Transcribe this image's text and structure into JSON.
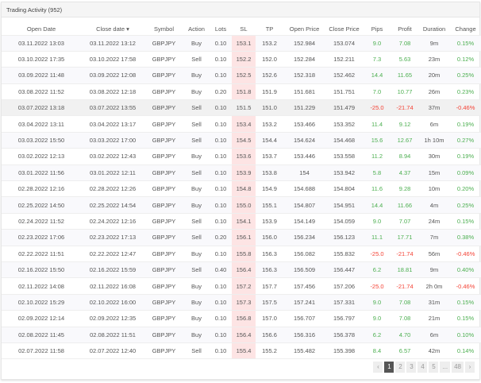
{
  "panel": {
    "title": "Trading Activity (952)"
  },
  "columns": [
    "Open Date",
    "Close date ▾",
    "Symbol",
    "Action",
    "Lots",
    "SL",
    "TP",
    "Open Price",
    "Close Price",
    "Pips",
    "Profit",
    "Duration",
    "Change"
  ],
  "rows": [
    [
      "03.11.2022 13:03",
      "03.11.2022 13:12",
      "GBPJPY",
      "Buy",
      "0.10",
      "153.1",
      "153.2",
      "152.984",
      "153.074",
      "9.0",
      "7.08",
      "9m",
      "0.15%"
    ],
    [
      "03.10.2022 17:35",
      "03.10.2022 17:58",
      "GBPJPY",
      "Sell",
      "0.10",
      "152.2",
      "152.0",
      "152.284",
      "152.211",
      "7.3",
      "5.63",
      "23m",
      "0.12%"
    ],
    [
      "03.09.2022 11:48",
      "03.09.2022 12:08",
      "GBPJPY",
      "Buy",
      "0.10",
      "152.5",
      "152.6",
      "152.318",
      "152.462",
      "14.4",
      "11.65",
      "20m",
      "0.25%"
    ],
    [
      "03.08.2022 11:52",
      "03.08.2022 12:18",
      "GBPJPY",
      "Buy",
      "0.20",
      "151.8",
      "151.9",
      "151.681",
      "151.751",
      "7.0",
      "10.77",
      "26m",
      "0.23%"
    ],
    [
      "03.07.2022 13:18",
      "03.07.2022 13:55",
      "GBPJPY",
      "Sell",
      "0.10",
      "151.5",
      "151.0",
      "151.229",
      "151.479",
      "-25.0",
      "-21.74",
      "37m",
      "-0.46%"
    ],
    [
      "03.04.2022 13:11",
      "03.04.2022 13:17",
      "GBPJPY",
      "Sell",
      "0.10",
      "153.4",
      "153.2",
      "153.466",
      "153.352",
      "11.4",
      "9.12",
      "6m",
      "0.19%"
    ],
    [
      "03.03.2022 15:50",
      "03.03.2022 17:00",
      "GBPJPY",
      "Sell",
      "0.10",
      "154.5",
      "154.4",
      "154.624",
      "154.468",
      "15.6",
      "12.67",
      "1h 10m",
      "0.27%"
    ],
    [
      "03.02.2022 12:13",
      "03.02.2022 12:43",
      "GBPJPY",
      "Buy",
      "0.10",
      "153.6",
      "153.7",
      "153.446",
      "153.558",
      "11.2",
      "8.94",
      "30m",
      "0.19%"
    ],
    [
      "03.01.2022 11:56",
      "03.01.2022 12:11",
      "GBPJPY",
      "Sell",
      "0.10",
      "153.9",
      "153.8",
      "154",
      "153.942",
      "5.8",
      "4.37",
      "15m",
      "0.09%"
    ],
    [
      "02.28.2022 12:16",
      "02.28.2022 12:26",
      "GBPJPY",
      "Buy",
      "0.10",
      "154.8",
      "154.9",
      "154.688",
      "154.804",
      "11.6",
      "9.28",
      "10m",
      "0.20%"
    ],
    [
      "02.25.2022 14:50",
      "02.25.2022 14:54",
      "GBPJPY",
      "Buy",
      "0.10",
      "155.0",
      "155.1",
      "154.807",
      "154.951",
      "14.4",
      "11.66",
      "4m",
      "0.25%"
    ],
    [
      "02.24.2022 11:52",
      "02.24.2022 12:16",
      "GBPJPY",
      "Sell",
      "0.10",
      "154.1",
      "153.9",
      "154.149",
      "154.059",
      "9.0",
      "7.07",
      "24m",
      "0.15%"
    ],
    [
      "02.23.2022 17:06",
      "02.23.2022 17:13",
      "GBPJPY",
      "Sell",
      "0.20",
      "156.1",
      "156.0",
      "156.234",
      "156.123",
      "11.1",
      "17.71",
      "7m",
      "0.38%"
    ],
    [
      "02.22.2022 11:51",
      "02.22.2022 12:47",
      "GBPJPY",
      "Buy",
      "0.10",
      "155.8",
      "156.3",
      "156.082",
      "155.832",
      "-25.0",
      "-21.74",
      "56m",
      "-0.46%"
    ],
    [
      "02.16.2022 15:50",
      "02.16.2022 15:59",
      "GBPJPY",
      "Sell",
      "0.40",
      "156.4",
      "156.3",
      "156.509",
      "156.447",
      "6.2",
      "18.81",
      "9m",
      "0.40%"
    ],
    [
      "02.11.2022 14:08",
      "02.11.2022 16:08",
      "GBPJPY",
      "Buy",
      "0.10",
      "157.2",
      "157.7",
      "157.456",
      "157.206",
      "-25.0",
      "-21.74",
      "2h 0m",
      "-0.46%"
    ],
    [
      "02.10.2022 15:29",
      "02.10.2022 16:00",
      "GBPJPY",
      "Buy",
      "0.10",
      "157.3",
      "157.5",
      "157.241",
      "157.331",
      "9.0",
      "7.08",
      "31m",
      "0.15%"
    ],
    [
      "02.09.2022 12:14",
      "02.09.2022 12:35",
      "GBPJPY",
      "Buy",
      "0.10",
      "156.8",
      "157.0",
      "156.707",
      "156.797",
      "9.0",
      "7.08",
      "21m",
      "0.15%"
    ],
    [
      "02.08.2022 11:45",
      "02.08.2022 11:51",
      "GBPJPY",
      "Buy",
      "0.10",
      "156.4",
      "156.6",
      "156.316",
      "156.378",
      "6.2",
      "4.70",
      "6m",
      "0.10%"
    ],
    [
      "02.07.2022 11:58",
      "02.07.2022 12:40",
      "GBPJPY",
      "Sell",
      "0.10",
      "155.4",
      "155.2",
      "155.482",
      "155.398",
      "8.4",
      "6.57",
      "42m",
      "0.14%"
    ]
  ],
  "hovered_row": 4,
  "pagination": {
    "prev": "‹",
    "pages": [
      "1",
      "2",
      "3",
      "4",
      "5"
    ],
    "ellipsis": "...",
    "last": "48",
    "next": "›",
    "current": "1"
  },
  "colors": {
    "positive": "#4caf50",
    "negative": "#f44336",
    "sl_highlight": "#fde4e4"
  }
}
